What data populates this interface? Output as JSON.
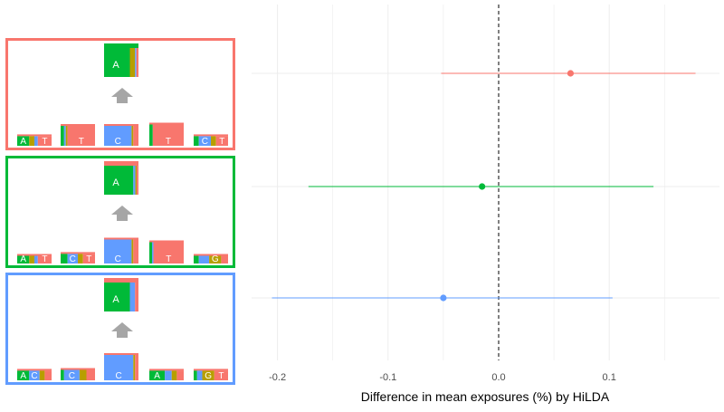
{
  "chart_data": {
    "type": "forest",
    "xlabel": "Difference in mean exposures (%) by HiLDA",
    "ylabel": "",
    "title": "",
    "xlim": [
      -0.22,
      0.19
    ],
    "xticks": [
      -0.2,
      -0.1,
      0.0,
      0.1
    ],
    "xtick_labels": [
      "-0.2",
      "-0.1",
      "0.0",
      "0.1"
    ],
    "reference_line": 0.0,
    "grid": true,
    "series": [
      {
        "signature": 1,
        "color": "#f8766d",
        "estimate": 0.065,
        "lower": -0.052,
        "upper": 0.178
      },
      {
        "signature": 2,
        "color": "#00ba38",
        "estimate": -0.015,
        "lower": -0.172,
        "upper": 0.14
      },
      {
        "signature": 3,
        "color": "#619cff",
        "estimate": -0.05,
        "lower": -0.205,
        "upper": 0.103
      }
    ]
  },
  "signatures": [
    {
      "border_color": "#f8766d",
      "substitution": {
        "label": "A",
        "dominant": "A",
        "segments": [
          {
            "b": "A",
            "w": 0.75
          },
          {
            "b": "G",
            "w": 0.15
          },
          {
            "b": "C",
            "w": 0.04
          },
          {
            "b": "T",
            "w": 0.06
          }
        ]
      },
      "flanks": [
        {
          "label": "A",
          "h": 0.42,
          "w": [
            [
              "A",
              0.35
            ],
            [
              "G",
              0.15
            ],
            [
              "C",
              0.1
            ],
            [
              "T",
              0.4
            ]
          ],
          "labels": [
            [
              "A",
              0
            ],
            [
              "T",
              3
            ]
          ]
        },
        {
          "label": "T",
          "h": 0.8,
          "w": [
            [
              "A",
              0.1
            ],
            [
              "C",
              0.05
            ],
            [
              "G",
              0.05
            ],
            [
              "T",
              0.8
            ]
          ],
          "labels": [
            [
              "T",
              3
            ]
          ]
        },
        {
          "label": "C",
          "h": 0.8,
          "w": [
            [
              "C",
              0.8
            ],
            [
              "G",
              0.05
            ],
            [
              "T",
              0.15
            ]
          ],
          "labels": [
            [
              "C",
              0
            ]
          ]
        },
        {
          "label": "T",
          "h": 0.85,
          "w": [
            [
              "A",
              0.1
            ],
            [
              "T",
              0.9
            ]
          ],
          "labels": [
            [
              "T",
              1
            ]
          ]
        },
        {
          "label": "T",
          "h": 0.42,
          "w": [
            [
              "A",
              0.15
            ],
            [
              "C",
              0.35
            ],
            [
              "G",
              0.15
            ],
            [
              "T",
              0.35
            ]
          ],
          "labels": [
            [
              "C",
              1
            ],
            [
              "T",
              3
            ]
          ]
        }
      ]
    },
    {
      "border_color": "#00ba38",
      "substitution": {
        "label": "A",
        "dominant": "A",
        "segments": [
          {
            "b": "A",
            "w": 0.85
          },
          {
            "b": "C",
            "w": 0.06
          },
          {
            "b": "G",
            "w": 0.04
          },
          {
            "b": "T",
            "w": 0.05
          }
        ]
      },
      "flanks": [
        {
          "label": "A",
          "h": 0.35,
          "w": [
            [
              "A",
              0.35
            ],
            [
              "G",
              0.15
            ],
            [
              "C",
              0.1
            ],
            [
              "T",
              0.4
            ]
          ],
          "labels": [
            [
              "A",
              0
            ],
            [
              "T",
              3
            ]
          ]
        },
        {
          "label": "C",
          "h": 0.42,
          "w": [
            [
              "A",
              0.2
            ],
            [
              "C",
              0.3
            ],
            [
              "G",
              0.15
            ],
            [
              "T",
              0.35
            ]
          ],
          "labels": [
            [
              "C",
              1
            ],
            [
              "T",
              3
            ]
          ]
        },
        {
          "label": "C",
          "h": 0.95,
          "w": [
            [
              "C",
              0.8
            ],
            [
              "G",
              0.05
            ],
            [
              "T",
              0.15
            ]
          ],
          "labels": [
            [
              "C",
              0
            ]
          ]
        },
        {
          "label": "T",
          "h": 0.85,
          "w": [
            [
              "A",
              0.08
            ],
            [
              "C",
              0.04
            ],
            [
              "T",
              0.88
            ]
          ],
          "labels": [
            [
              "T",
              2
            ]
          ]
        },
        {
          "label": "G",
          "h": 0.35,
          "w": [
            [
              "A",
              0.15
            ],
            [
              "C",
              0.3
            ],
            [
              "G",
              0.35
            ],
            [
              "T",
              0.2
            ]
          ],
          "labels": [
            [
              "G",
              2
            ]
          ]
        }
      ]
    },
    {
      "border_color": "#619cff",
      "substitution": {
        "label": "A",
        "dominant": "A",
        "segments": [
          {
            "b": "A",
            "w": 0.75
          },
          {
            "b": "C",
            "w": 0.15
          },
          {
            "b": "T",
            "w": 0.1
          }
        ]
      },
      "flanks": [
        {
          "label": "A C",
          "h": 0.42,
          "w": [
            [
              "A",
              0.35
            ],
            [
              "C",
              0.3
            ],
            [
              "G",
              0.15
            ],
            [
              "T",
              0.2
            ]
          ],
          "labels": [
            [
              "A",
              0
            ],
            [
              "C",
              1
            ]
          ]
        },
        {
          "label": "C",
          "h": 0.45,
          "w": [
            [
              "A",
              0.1
            ],
            [
              "C",
              0.45
            ],
            [
              "G",
              0.2
            ],
            [
              "T",
              0.25
            ]
          ],
          "labels": [
            [
              "C",
              1
            ]
          ]
        },
        {
          "label": "C",
          "h": 1.0,
          "w": [
            [
              "C",
              0.85
            ],
            [
              "G",
              0.05
            ],
            [
              "T",
              0.1
            ]
          ],
          "labels": [
            [
              "C",
              0
            ]
          ]
        },
        {
          "label": "A",
          "h": 0.42,
          "w": [
            [
              "A",
              0.45
            ],
            [
              "C",
              0.2
            ],
            [
              "G",
              0.15
            ],
            [
              "T",
              0.2
            ]
          ],
          "labels": [
            [
              "A",
              0
            ]
          ]
        },
        {
          "label": "G T",
          "h": 0.42,
          "w": [
            [
              "A",
              0.1
            ],
            [
              "C",
              0.15
            ],
            [
              "G",
              0.35
            ],
            [
              "T",
              0.4
            ]
          ],
          "labels": [
            [
              "G",
              2
            ],
            [
              "T",
              3
            ]
          ]
        }
      ]
    }
  ],
  "base_colors": {
    "A": "#00ba38",
    "C": "#619cff",
    "G": "#b79f00",
    "T": "#f8766d"
  },
  "arrow_color": "#a6a6a6"
}
